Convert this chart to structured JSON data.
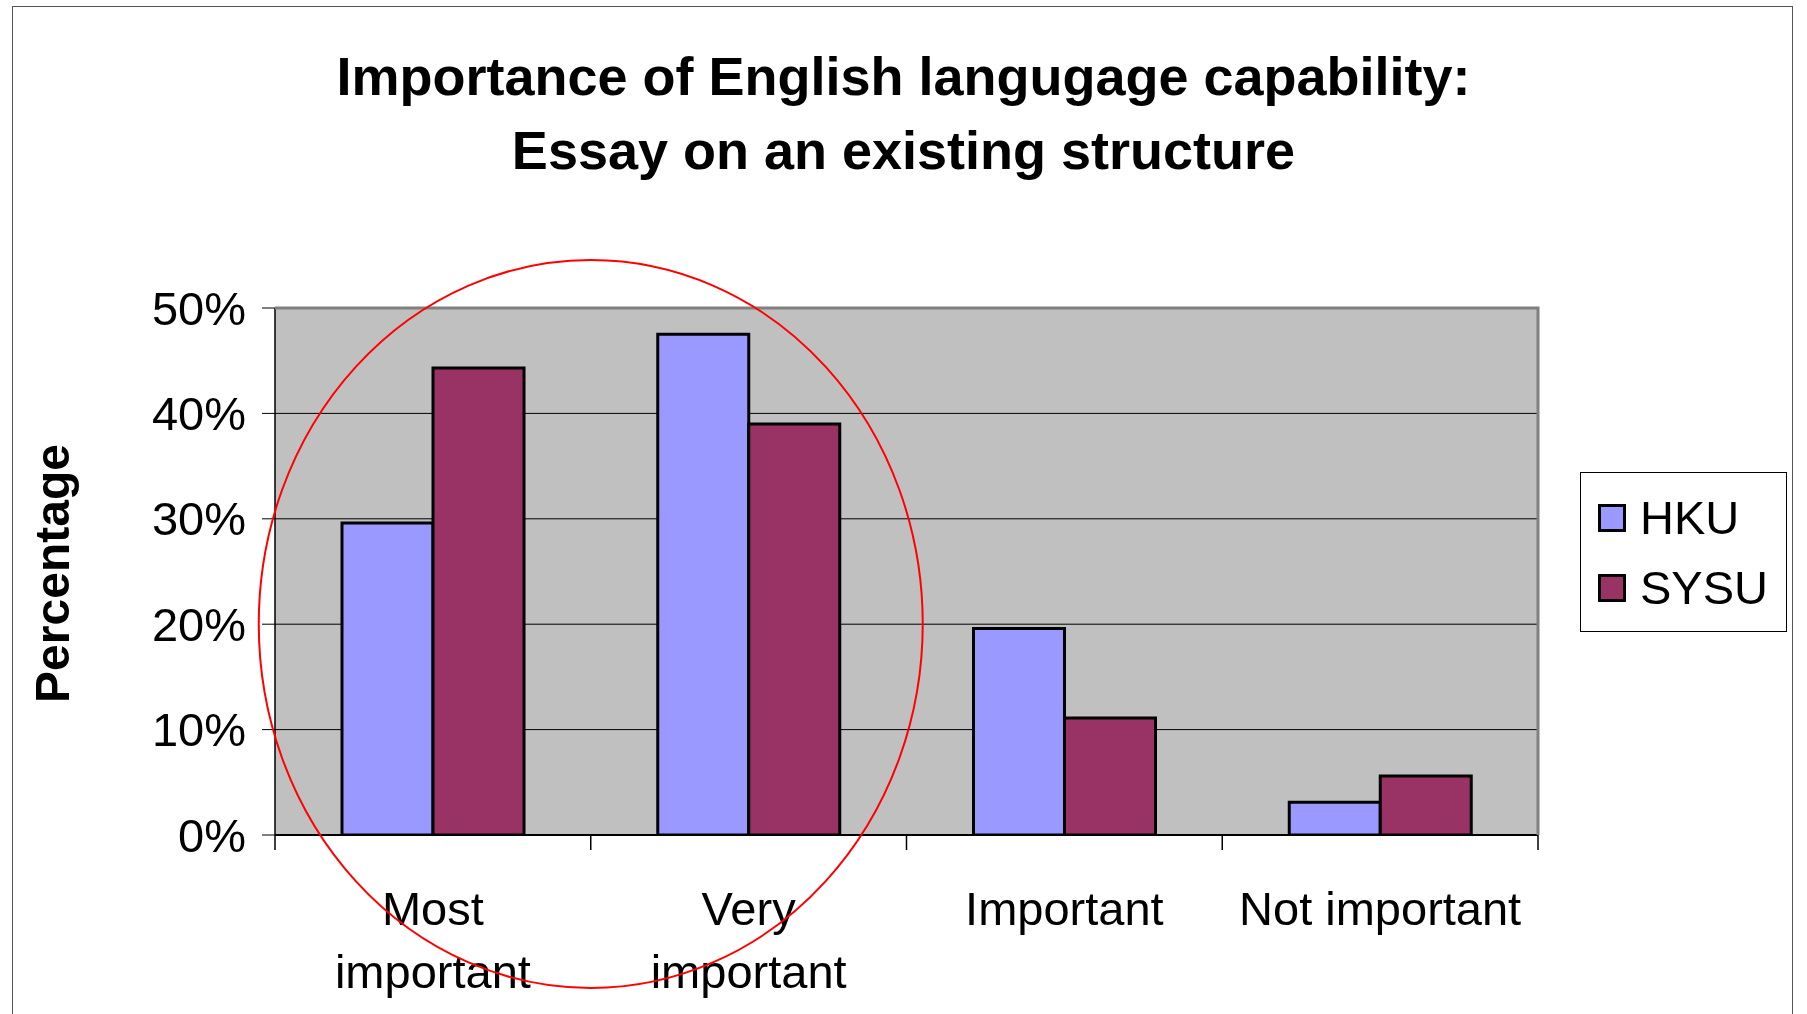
{
  "chart_data": {
    "type": "bar",
    "title": "Importance of English langugage capability:\nEssay on an existing structure",
    "ylabel": "Percentage",
    "categories": [
      "Most important",
      "Very important",
      "Important",
      "Not important"
    ],
    "series": [
      {
        "name": "HKU",
        "color": "#9999ff",
        "values": [
          29.6,
          47.5,
          19.6,
          3.1
        ]
      },
      {
        "name": "SYSU",
        "color": "#993366",
        "values": [
          44.3,
          39.0,
          11.1,
          5.6
        ]
      }
    ],
    "ylim": [
      0,
      50
    ],
    "yticks": [
      {
        "value": 0,
        "label": "0%"
      },
      {
        "value": 10,
        "label": "10%"
      },
      {
        "value": 20,
        "label": "20%"
      },
      {
        "value": 30,
        "label": "30%"
      },
      {
        "value": 40,
        "label": "40%"
      },
      {
        "value": 50,
        "label": "50%"
      }
    ],
    "grid": "y",
    "legend": "right"
  }
}
